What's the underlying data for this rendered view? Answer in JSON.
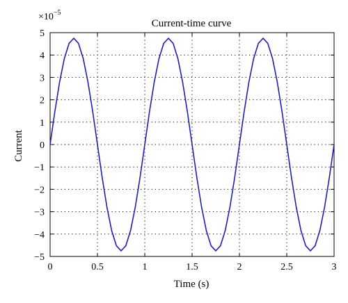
{
  "chart_data": {
    "type": "line",
    "title": "Current-time curve",
    "xlabel": "Time (s)",
    "ylabel": "Current",
    "xlim": [
      0,
      3
    ],
    "ylim": [
      -5,
      5
    ],
    "y_scale_note": {
      "base": "×10",
      "exponent": "−5"
    },
    "x_ticks": [
      "0",
      "0.5",
      "1",
      "1.5",
      "2",
      "2.5",
      "3"
    ],
    "y_ticks": [
      "5",
      "4",
      "3",
      "2",
      "1",
      "0",
      "−1",
      "−2",
      "−3",
      "−4",
      "−5"
    ],
    "grid": true,
    "grid_style": "dotted",
    "line_color": "#1f1fb8",
    "series": [
      {
        "x": [
          0,
          0.05,
          0.1,
          0.15,
          0.2,
          0.25,
          0.3,
          0.35,
          0.4,
          0.45,
          0.5,
          0.55,
          0.6,
          0.65,
          0.7,
          0.75,
          0.8,
          0.85,
          0.9,
          0.95,
          1.0,
          1.05,
          1.1,
          1.15,
          1.2,
          1.25,
          1.3,
          1.35,
          1.4,
          1.45,
          1.5,
          1.55,
          1.6,
          1.65,
          1.7,
          1.75,
          1.8,
          1.85,
          1.9,
          1.95,
          2.0,
          2.05,
          2.1,
          2.15,
          2.2,
          2.25,
          2.3,
          2.35,
          2.4,
          2.45,
          2.5,
          2.55,
          2.6,
          2.65,
          2.7,
          2.75,
          2.8,
          2.85,
          2.9,
          2.95,
          3.0
        ],
        "values": [
          0,
          1.47,
          2.79,
          3.84,
          4.52,
          4.75,
          4.52,
          3.84,
          2.79,
          1.47,
          0,
          -1.47,
          -2.79,
          -3.84,
          -4.52,
          -4.75,
          -4.52,
          -3.84,
          -2.79,
          -1.47,
          0,
          1.47,
          2.79,
          3.84,
          4.52,
          4.75,
          4.52,
          3.84,
          2.79,
          1.47,
          0,
          -1.47,
          -2.79,
          -3.84,
          -4.52,
          -4.75,
          -4.52,
          -3.84,
          -2.79,
          -1.47,
          0,
          1.47,
          2.79,
          3.84,
          4.52,
          4.75,
          4.52,
          3.84,
          2.79,
          1.47,
          0,
          -1.47,
          -2.79,
          -3.84,
          -4.52,
          -4.75,
          -4.52,
          -3.84,
          -2.79,
          -1.47,
          0
        ]
      }
    ]
  }
}
